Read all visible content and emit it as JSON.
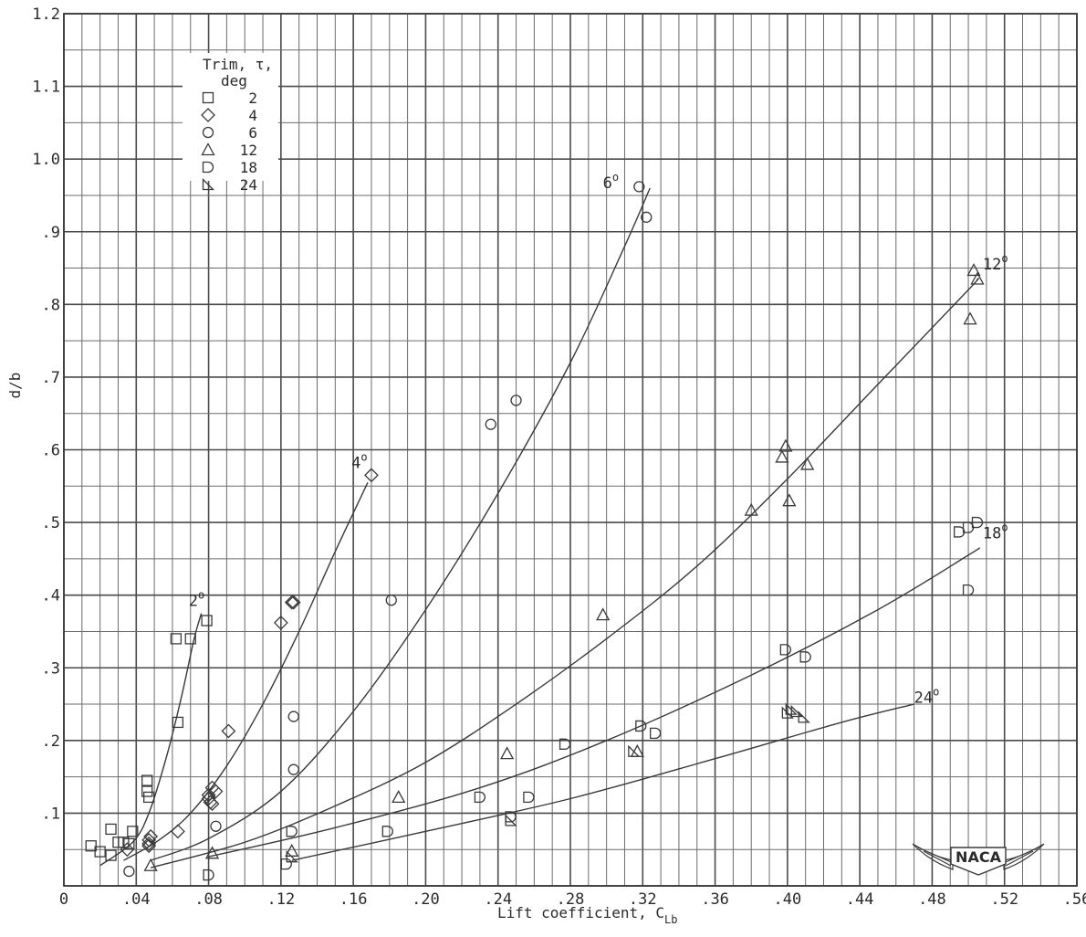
{
  "chart_data": {
    "type": "scatter",
    "xlabel": "Lift coefficient, C",
    "xlabel_sub": "Lb",
    "ylabel": "d/b",
    "xlim": [
      0,
      0.56
    ],
    "ylim": [
      0,
      1.2
    ],
    "x_tick_labels": [
      "0",
      ".04",
      ".08",
      ".12",
      ".16",
      ".20",
      ".24",
      ".28",
      ".32",
      ".36",
      ".40",
      ".44",
      ".48",
      ".52",
      ".56"
    ],
    "y_tick_labels": [
      ".1",
      ".2",
      ".3",
      ".4",
      ".5",
      ".6",
      ".7",
      ".8",
      ".9",
      "1.0",
      "1.1",
      "1.2"
    ],
    "grid": true,
    "legend": {
      "title": [
        "Trim, τ,",
        "deg"
      ],
      "placement": "top-left",
      "entries": [
        {
          "label": "2",
          "marker": "square"
        },
        {
          "label": "4",
          "marker": "diamond"
        },
        {
          "label": "6",
          "marker": "circle"
        },
        {
          "label": "12",
          "marker": "triangle"
        },
        {
          "label": "18",
          "marker": "flag-circle"
        },
        {
          "label": "24",
          "marker": "flag-triangle"
        }
      ]
    },
    "series": [
      {
        "name": "2",
        "marker": "square",
        "points": [
          [
            0.015,
            0.055
          ],
          [
            0.02,
            0.047
          ],
          [
            0.026,
            0.042
          ],
          [
            0.026,
            0.078
          ],
          [
            0.03,
            0.06
          ],
          [
            0.033,
            0.06
          ],
          [
            0.036,
            0.058
          ],
          [
            0.038,
            0.075
          ],
          [
            0.046,
            0.13
          ],
          [
            0.046,
            0.145
          ],
          [
            0.047,
            0.122
          ],
          [
            0.062,
            0.34
          ],
          [
            0.063,
            0.225
          ],
          [
            0.07,
            0.34
          ],
          [
            0.079,
            0.365
          ]
        ],
        "curve": [
          [
            0.02,
            0.028
          ],
          [
            0.038,
            0.06
          ],
          [
            0.047,
            0.1
          ],
          [
            0.057,
            0.18
          ],
          [
            0.065,
            0.26
          ],
          [
            0.072,
            0.34
          ],
          [
            0.076,
            0.375
          ]
        ]
      },
      {
        "name": "4",
        "marker": "diamond",
        "points": [
          [
            0.035,
            0.05
          ],
          [
            0.047,
            0.055
          ],
          [
            0.047,
            0.058
          ],
          [
            0.047,
            0.063
          ],
          [
            0.048,
            0.068
          ],
          [
            0.063,
            0.075
          ],
          [
            0.08,
            0.12
          ],
          [
            0.08,
            0.125
          ],
          [
            0.081,
            0.115
          ],
          [
            0.082,
            0.113
          ],
          [
            0.082,
            0.135
          ],
          [
            0.084,
            0.13
          ],
          [
            0.091,
            0.213
          ],
          [
            0.12,
            0.362
          ],
          [
            0.126,
            0.39
          ],
          [
            0.127,
            0.39
          ],
          [
            0.17,
            0.565
          ]
        ],
        "curve": [
          [
            0.033,
            0.035
          ],
          [
            0.052,
            0.062
          ],
          [
            0.07,
            0.1
          ],
          [
            0.09,
            0.165
          ],
          [
            0.11,
            0.25
          ],
          [
            0.13,
            0.35
          ],
          [
            0.15,
            0.46
          ],
          [
            0.168,
            0.555
          ]
        ]
      },
      {
        "name": "6",
        "marker": "circle",
        "points": [
          [
            0.036,
            0.02
          ],
          [
            0.084,
            0.082
          ],
          [
            0.127,
            0.233
          ],
          [
            0.127,
            0.16
          ],
          [
            0.181,
            0.393
          ],
          [
            0.236,
            0.635
          ],
          [
            0.25,
            0.668
          ],
          [
            0.318,
            0.962
          ],
          [
            0.322,
            0.92
          ]
        ],
        "curve": [
          [
            0.048,
            0.035
          ],
          [
            0.08,
            0.065
          ],
          [
            0.12,
            0.13
          ],
          [
            0.16,
            0.24
          ],
          [
            0.2,
            0.38
          ],
          [
            0.24,
            0.54
          ],
          [
            0.28,
            0.72
          ],
          [
            0.31,
            0.88
          ],
          [
            0.324,
            0.96
          ]
        ]
      },
      {
        "name": "12",
        "marker": "triangle",
        "points": [
          [
            0.048,
            0.028
          ],
          [
            0.082,
            0.045
          ],
          [
            0.126,
            0.048
          ],
          [
            0.185,
            0.122
          ],
          [
            0.245,
            0.182
          ],
          [
            0.298,
            0.373
          ],
          [
            0.317,
            0.185
          ],
          [
            0.38,
            0.517
          ],
          [
            0.397,
            0.59
          ],
          [
            0.399,
            0.605
          ],
          [
            0.401,
            0.53
          ],
          [
            0.411,
            0.58
          ],
          [
            0.501,
            0.78
          ],
          [
            0.503,
            0.847
          ],
          [
            0.505,
            0.835
          ]
        ],
        "curve": [
          [
            0.048,
            0.025
          ],
          [
            0.1,
            0.06
          ],
          [
            0.15,
            0.11
          ],
          [
            0.2,
            0.17
          ],
          [
            0.25,
            0.25
          ],
          [
            0.3,
            0.34
          ],
          [
            0.35,
            0.44
          ],
          [
            0.4,
            0.56
          ],
          [
            0.45,
            0.69
          ],
          [
            0.5,
            0.82
          ],
          [
            0.505,
            0.835
          ]
        ]
      },
      {
        "name": "18",
        "marker": "flag-circle",
        "points": [
          [
            0.08,
            0.015
          ],
          [
            0.123,
            0.03
          ],
          [
            0.126,
            0.075
          ],
          [
            0.179,
            0.075
          ],
          [
            0.23,
            0.122
          ],
          [
            0.247,
            0.095
          ],
          [
            0.257,
            0.122
          ],
          [
            0.277,
            0.195
          ],
          [
            0.319,
            0.22
          ],
          [
            0.327,
            0.21
          ],
          [
            0.399,
            0.325
          ],
          [
            0.41,
            0.315
          ],
          [
            0.495,
            0.487
          ],
          [
            0.5,
            0.493
          ],
          [
            0.5,
            0.407
          ],
          [
            0.505,
            0.5
          ]
        ],
        "curve": [
          [
            0.08,
            0.04
          ],
          [
            0.15,
            0.08
          ],
          [
            0.23,
            0.135
          ],
          [
            0.3,
            0.2
          ],
          [
            0.38,
            0.29
          ],
          [
            0.45,
            0.38
          ],
          [
            0.5,
            0.455
          ],
          [
            0.506,
            0.465
          ]
        ]
      },
      {
        "name": "24",
        "marker": "flag-triangle",
        "points": [
          [
            0.126,
            0.04
          ],
          [
            0.247,
            0.09
          ],
          [
            0.315,
            0.185
          ],
          [
            0.4,
            0.238
          ],
          [
            0.402,
            0.243
          ],
          [
            0.405,
            0.24
          ],
          [
            0.409,
            0.232
          ]
        ],
        "curve": [
          [
            0.126,
            0.035
          ],
          [
            0.2,
            0.075
          ],
          [
            0.28,
            0.12
          ],
          [
            0.36,
            0.175
          ],
          [
            0.43,
            0.225
          ],
          [
            0.47,
            0.25
          ]
        ]
      }
    ],
    "curve_labels": [
      {
        "text": "2",
        "sup": "o",
        "x": 0.069,
        "y": 0.385
      },
      {
        "text": "4",
        "sup": "o",
        "x": 0.159,
        "y": 0.575
      },
      {
        "text": "6",
        "sup": "o",
        "x": 0.298,
        "y": 0.96
      },
      {
        "text": "12",
        "sup": "o",
        "x": 0.508,
        "y": 0.848
      },
      {
        "text": "18",
        "sup": "o",
        "x": 0.508,
        "y": 0.478
      },
      {
        "text": "24",
        "sup": "o",
        "x": 0.47,
        "y": 0.252
      }
    ]
  },
  "logo": {
    "text": "NACA"
  }
}
